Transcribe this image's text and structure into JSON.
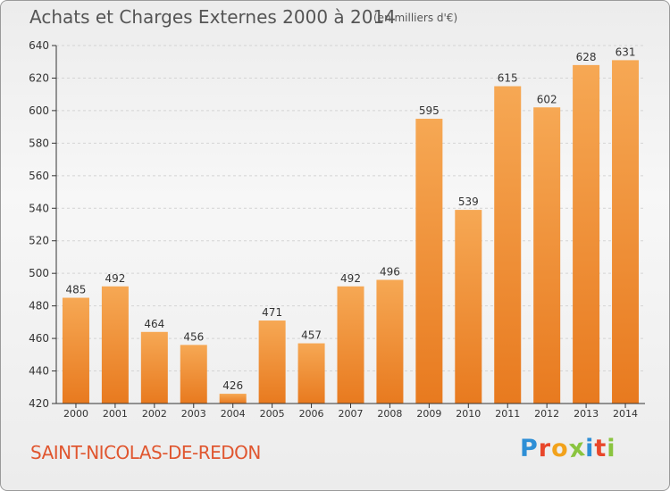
{
  "title": "Achats et Charges Externes 2000 à 2014",
  "unit_note": "(en milliers d'€)",
  "town": "SAINT-NICOLAS-DE-REDON",
  "logo": {
    "letters": [
      "P",
      "r",
      "o",
      "x",
      "i",
      "t",
      "i"
    ],
    "colors": [
      "#2e8fd6",
      "#e8462a",
      "#f2a21b",
      "#8ac43f",
      "#2e8fd6",
      "#e8462a",
      "#8ac43f"
    ]
  },
  "colors": {
    "bar_light": "#f6a854",
    "bar_dark": "#e87a1f",
    "axis": "#333333",
    "grid": "#d4d4d4",
    "text": "#333333"
  },
  "chart_data": {
    "type": "bar",
    "categories": [
      "2000",
      "2001",
      "2002",
      "2003",
      "2004",
      "2005",
      "2006",
      "2007",
      "2008",
      "2009",
      "2010",
      "2011",
      "2012",
      "2013",
      "2014"
    ],
    "values": [
      485,
      492,
      464,
      456,
      426,
      471,
      457,
      492,
      496,
      595,
      539,
      615,
      602,
      628,
      631
    ],
    "ylim": [
      420,
      640
    ],
    "yticks": [
      420,
      440,
      460,
      480,
      500,
      520,
      540,
      560,
      580,
      600,
      620,
      640
    ],
    "title": "Achats et Charges Externes 2000 à 2014",
    "xlabel": "",
    "ylabel": "",
    "grid": true,
    "data_labels": true
  }
}
